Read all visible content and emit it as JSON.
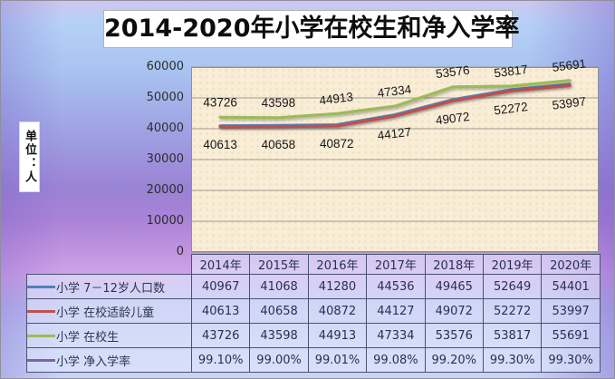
{
  "page": {
    "title": "2014-2020年小学在校生和净入学率",
    "unit_label": "单位：人"
  },
  "chart_data": {
    "type": "line",
    "title": "2014-2020年小学在校生和净入学率",
    "ylabel": "单位：人",
    "categories": [
      "2014年",
      "2015年",
      "2016年",
      "2017年",
      "2018年",
      "2019年",
      "2020年"
    ],
    "ylim": [
      0,
      60000
    ],
    "ytick_interval": 10000,
    "yticks": [
      "60000",
      "50000",
      "40000",
      "30000",
      "20000",
      "10000",
      "0"
    ],
    "grid": true,
    "plot_bg": "#f9edd6",
    "gridline_color": "#9e9a92",
    "legend_position": "table-left",
    "series": [
      {
        "name": "小学 7－12岁人口数",
        "color": "#4F81BD",
        "values": [
          40967,
          41068,
          41280,
          44536,
          49465,
          52649,
          54401
        ],
        "data_labels": "none",
        "plotted": true
      },
      {
        "name": "小学 在校适龄儿童",
        "color": "#C0504D",
        "values": [
          40613,
          40658,
          40872,
          44127,
          49072,
          52272,
          53997
        ],
        "data_labels": "below",
        "plotted": true
      },
      {
        "name": "小学 在校生",
        "color": "#9BBB59",
        "values": [
          43726,
          43598,
          44913,
          47334,
          53576,
          53817,
          55691
        ],
        "data_labels": "above",
        "plotted": true
      },
      {
        "name": "小学 净入学率",
        "color": "#8064A2",
        "values": [
          "99.10%",
          "99.00%",
          "99.01%",
          "99.08%",
          "99.20%",
          "99.30%",
          "99.30%"
        ],
        "data_labels": "none",
        "plotted": false
      }
    ]
  }
}
